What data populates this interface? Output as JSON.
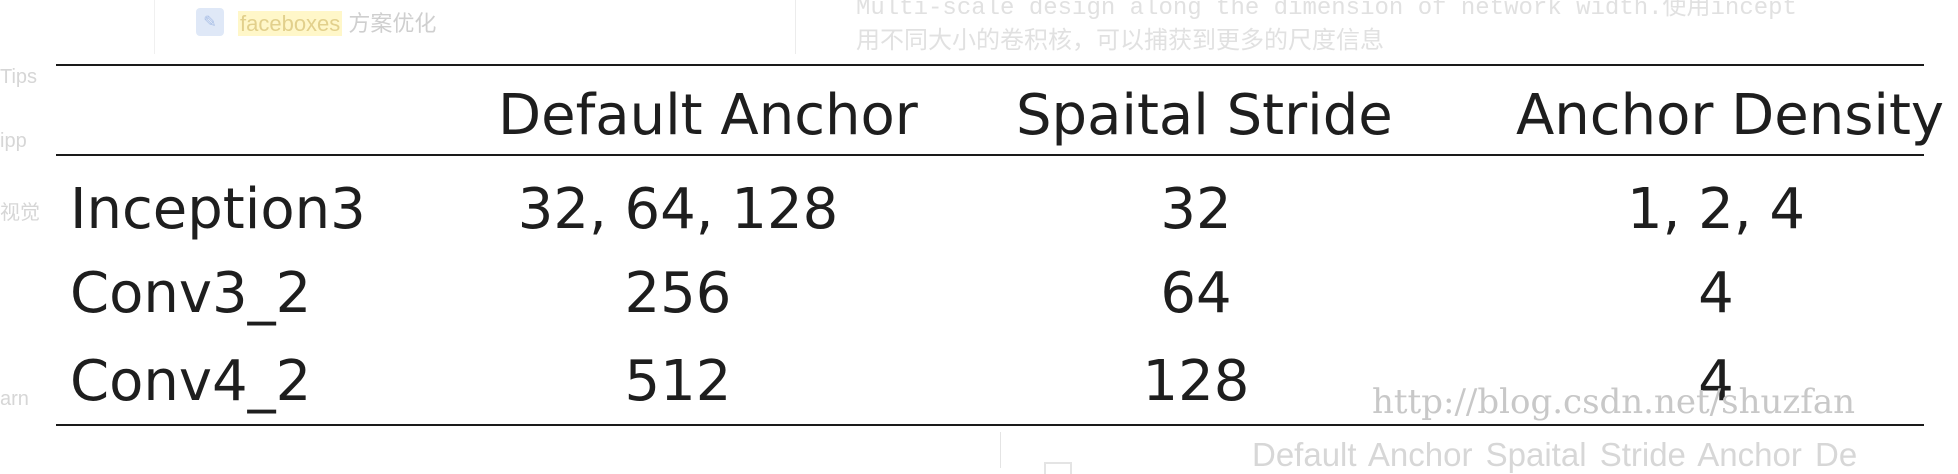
{
  "background": {
    "top_left_link": "faceboxes",
    "top_left_rest": " 方案优化",
    "side_labels": [
      "Tips",
      "ipp",
      "视觉",
      "arn"
    ],
    "top_right_line1": "Multi-scale design along the dimension of network width.使用incept",
    "top_right_line2": "用不同大小的卷积核，可以捕获到更多的尺度信息",
    "bottom_right_text": "Default Anchor    Spaital Stride  Anchor De"
  },
  "table": {
    "headers": [
      "",
      "Default Anchor",
      "Spaital Stride",
      "Anchor Density"
    ],
    "rows": [
      {
        "label": "Inception3",
        "default_anchor": "32, 64, 128",
        "spatial_stride": "32",
        "anchor_density": "1, 2, 4"
      },
      {
        "label": "Conv3_2",
        "default_anchor": "256",
        "spatial_stride": "64",
        "anchor_density": "4"
      },
      {
        "label": "Conv4_2",
        "default_anchor": "512",
        "spatial_stride": "128",
        "anchor_density": "4"
      }
    ]
  },
  "watermark": "http://blog.csdn.net/shuzfan"
}
